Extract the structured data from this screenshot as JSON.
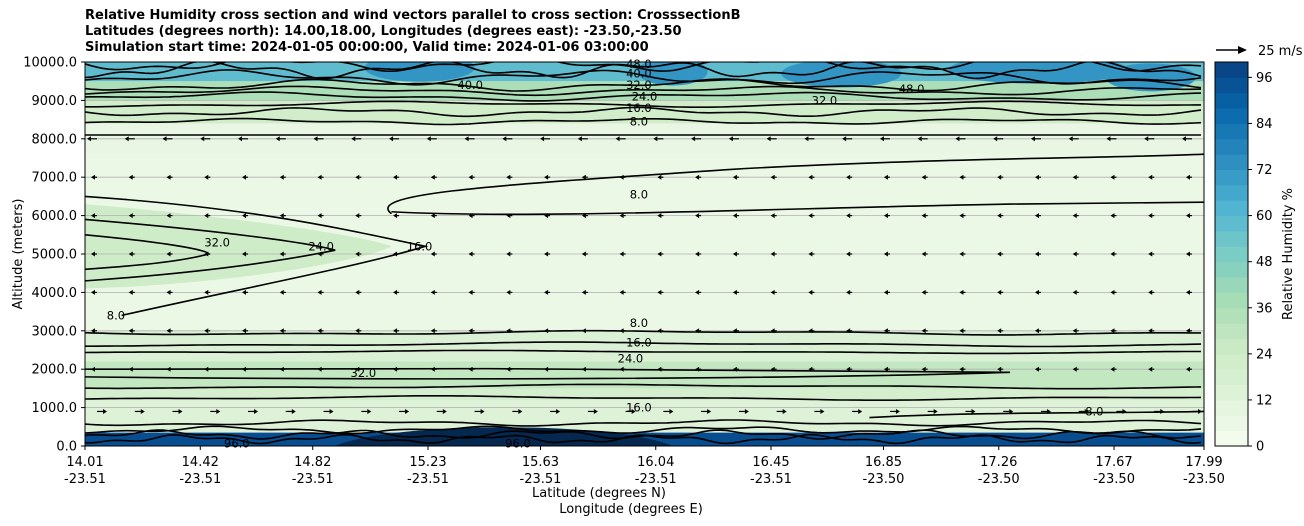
{
  "chart_data": {
    "type": "contour",
    "title_lines": [
      "Relative Humidity cross section and wind vectors parallel to cross section: CrosssectionB",
      "Latitudes (degrees north): 14.00,18.00, Longitudes (degrees east): -23.50,-23.50",
      "Simulation start time: 2024-01-05 00:00:00, Valid time: 2024-01-06 03:00:00"
    ],
    "ylabel": "Altitude (meters)",
    "xlabel_lat": "Latitude (degrees N)",
    "xlabel_lon": "Longitude (degrees E)",
    "ylim": [
      0,
      10000
    ],
    "y_ticks": [
      "0.0",
      "1000.0",
      "2000.0",
      "3000.0",
      "4000.0",
      "5000.0",
      "6000.0",
      "7000.0",
      "8000.0",
      "9000.0",
      "10000.0"
    ],
    "x_ticks": [
      {
        "lat": "14.01",
        "lon": "-23.51"
      },
      {
        "lat": "14.42",
        "lon": "-23.51"
      },
      {
        "lat": "14.82",
        "lon": "-23.51"
      },
      {
        "lat": "15.23",
        "lon": "-23.51"
      },
      {
        "lat": "15.63",
        "lon": "-23.51"
      },
      {
        "lat": "16.04",
        "lon": "-23.51"
      },
      {
        "lat": "16.45",
        "lon": "-23.51"
      },
      {
        "lat": "16.85",
        "lon": "-23.50"
      },
      {
        "lat": "17.26",
        "lon": "-23.50"
      },
      {
        "lat": "17.67",
        "lon": "-23.50"
      },
      {
        "lat": "17.99",
        "lon": "-23.50"
      }
    ],
    "colorbar_label": "Relative Humidity %",
    "colorbar_ticks": [
      "0",
      "12",
      "24",
      "36",
      "48",
      "60",
      "72",
      "84",
      "96"
    ],
    "colorbar_range": [
      0,
      100
    ],
    "quiver_key": "25 m/s",
    "contour_levels": [
      8,
      16,
      24,
      32,
      40,
      48,
      56,
      64,
      72,
      80,
      88,
      96
    ],
    "contour_labels": [
      {
        "text": "8.0",
        "lat": 15.98,
        "alt": 6550
      },
      {
        "text": "8.0",
        "lat": 15.98,
        "alt": 3200
      },
      {
        "text": "16.0",
        "lat": 15.98,
        "alt": 2700
      },
      {
        "text": "24.0",
        "lat": 15.95,
        "alt": 2280
      },
      {
        "text": "16.0",
        "lat": 15.98,
        "alt": 1000
      },
      {
        "text": "8.0",
        "lat": 15.98,
        "alt": 8450
      },
      {
        "text": "16.0",
        "lat": 15.98,
        "alt": 8800
      },
      {
        "text": "24.0",
        "lat": 16.0,
        "alt": 9100
      },
      {
        "text": "32.0",
        "lat": 15.98,
        "alt": 9400
      },
      {
        "text": "40.0",
        "lat": 15.98,
        "alt": 9700
      },
      {
        "text": "48.0",
        "lat": 15.98,
        "alt": 9950
      },
      {
        "text": "40.0",
        "lat": 15.38,
        "alt": 9400
      },
      {
        "text": "32.0",
        "lat": 16.64,
        "alt": 9000
      },
      {
        "text": "48.0",
        "lat": 16.95,
        "alt": 9300
      },
      {
        "text": "32.0",
        "lat": 14.48,
        "alt": 5300
      },
      {
        "text": "24.0",
        "lat": 14.85,
        "alt": 5200
      },
      {
        "text": "16.0",
        "lat": 15.2,
        "alt": 5200
      },
      {
        "text": "8.0",
        "lat": 14.12,
        "alt": 3400
      },
      {
        "text": "32.0",
        "lat": 15.0,
        "alt": 1900
      },
      {
        "text": "8.0",
        "lat": 17.6,
        "alt": 900
      },
      {
        "text": "96.0",
        "lat": 14.55,
        "alt": 60
      },
      {
        "text": "96.0",
        "lat": 15.55,
        "alt": 60
      }
    ],
    "regions": [
      {
        "alt_from": 0,
        "alt_to": 350,
        "rh": 96
      },
      {
        "alt_from": 350,
        "alt_to": 1200,
        "rh": 14
      },
      {
        "alt_from": 1200,
        "alt_to": 1500,
        "rh": 20
      },
      {
        "alt_from": 1500,
        "alt_to": 2200,
        "rh": 28
      },
      {
        "alt_from": 2200,
        "alt_to": 3000,
        "rh": 16
      },
      {
        "alt_from": 3000,
        "alt_to": 7600,
        "rh": 6
      },
      {
        "alt_from": 7600,
        "alt_to": 8400,
        "rh": 8
      },
      {
        "alt_from": 8400,
        "alt_to": 9000,
        "rh": 22
      },
      {
        "alt_from": 9000,
        "alt_to": 9500,
        "rh": 36
      },
      {
        "alt_from": 9500,
        "alt_to": 10000,
        "rh": 58
      }
    ],
    "wind_rows": [
      {
        "alt": 8000,
        "dir": "left"
      },
      {
        "alt": 900,
        "dir": "right"
      }
    ]
  }
}
